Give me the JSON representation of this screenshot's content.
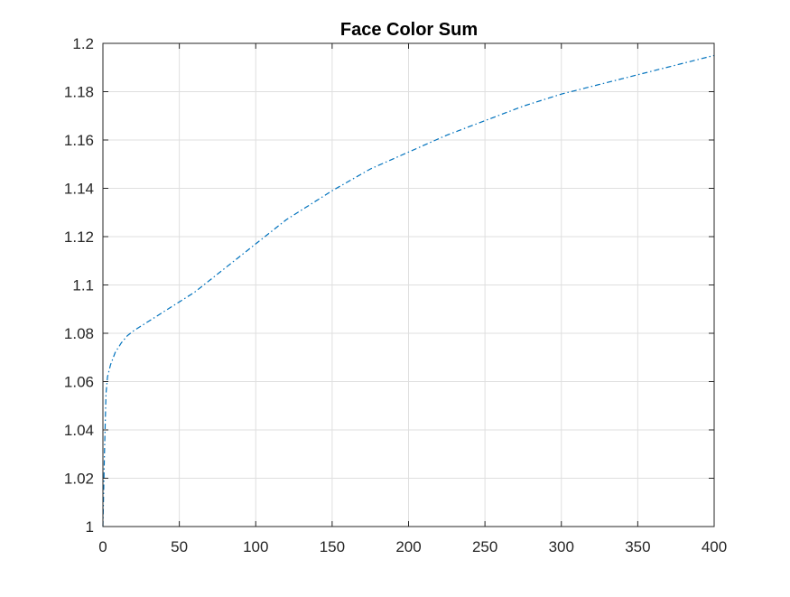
{
  "chart_data": {
    "type": "line",
    "title": "Face Color Sum",
    "xlabel": "",
    "ylabel": "",
    "xlim": [
      0,
      400
    ],
    "ylim": [
      1,
      1.2
    ],
    "xticks": [
      0,
      50,
      100,
      150,
      200,
      250,
      300,
      350,
      400
    ],
    "xtick_labels": [
      "0",
      "50",
      "100",
      "150",
      "200",
      "250",
      "300",
      "350",
      "400"
    ],
    "yticks": [
      1,
      1.02,
      1.04,
      1.06,
      1.08,
      1.1,
      1.12,
      1.14,
      1.16,
      1.18,
      1.2
    ],
    "ytick_labels": [
      "1",
      "1.02",
      "1.04",
      "1.06",
      "1.08",
      "1.1",
      "1.12",
      "1.14",
      "1.16",
      "1.18",
      "1.2"
    ],
    "grid": true,
    "line_style": "dash-dot",
    "series": [
      {
        "color": "#0072BD",
        "x": [
          0,
          1,
          2,
          3,
          5,
          8,
          12,
          16,
          20,
          30,
          40,
          50,
          60,
          80,
          100,
          120,
          150,
          175,
          200,
          225,
          250,
          275,
          300,
          325,
          350,
          375,
          400
        ],
        "y": [
          1.0,
          1.03,
          1.055,
          1.062,
          1.067,
          1.072,
          1.076,
          1.079,
          1.081,
          1.085,
          1.089,
          1.093,
          1.097,
          1.107,
          1.117,
          1.127,
          1.139,
          1.148,
          1.155,
          1.162,
          1.168,
          1.174,
          1.179,
          1.183,
          1.187,
          1.191,
          1.195
        ]
      }
    ]
  }
}
